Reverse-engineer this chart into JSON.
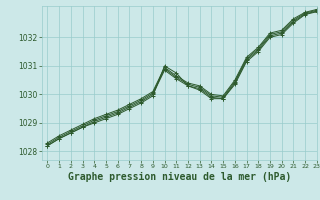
{
  "bg_color": "#cce8e8",
  "grid_color": "#99cccc",
  "line_color": "#2d5a2d",
  "marker_color": "#2d5a2d",
  "xlabel": "Graphe pression niveau de la mer (hPa)",
  "xlabel_fontsize": 7,
  "xlim": [
    -0.5,
    23
  ],
  "ylim": [
    1027.7,
    1033.1
  ],
  "yticks": [
    1028,
    1029,
    1030,
    1031,
    1032
  ],
  "xticks": [
    0,
    1,
    2,
    3,
    4,
    5,
    6,
    7,
    8,
    9,
    10,
    11,
    12,
    13,
    14,
    15,
    16,
    17,
    18,
    19,
    20,
    21,
    22,
    23
  ],
  "series": [
    [
      1028.2,
      1028.45,
      1028.65,
      1028.85,
      1029.0,
      1029.15,
      1029.3,
      1029.5,
      1029.7,
      1029.95,
      1031.0,
      1030.75,
      1030.3,
      1030.15,
      1029.85,
      1029.85,
      1030.35,
      1031.15,
      1031.5,
      1032.0,
      1032.1,
      1032.5,
      1032.8,
      1032.9
    ],
    [
      1028.2,
      1028.45,
      1028.65,
      1028.85,
      1029.05,
      1029.2,
      1029.35,
      1029.55,
      1029.75,
      1030.0,
      1030.85,
      1030.55,
      1030.3,
      1030.2,
      1029.9,
      1029.85,
      1030.4,
      1031.2,
      1031.55,
      1032.05,
      1032.15,
      1032.55,
      1032.82,
      1032.92
    ],
    [
      1028.25,
      1028.5,
      1028.7,
      1028.9,
      1029.1,
      1029.25,
      1029.4,
      1029.6,
      1029.8,
      1030.05,
      1030.9,
      1030.6,
      1030.35,
      1030.25,
      1029.95,
      1029.9,
      1030.45,
      1031.25,
      1031.6,
      1032.1,
      1032.2,
      1032.6,
      1032.85,
      1032.95
    ],
    [
      1028.3,
      1028.55,
      1028.75,
      1028.95,
      1029.15,
      1029.3,
      1029.45,
      1029.65,
      1029.85,
      1030.1,
      1030.95,
      1030.65,
      1030.4,
      1030.3,
      1030.0,
      1029.95,
      1030.5,
      1031.3,
      1031.65,
      1032.15,
      1032.25,
      1032.65,
      1032.88,
      1032.98
    ]
  ]
}
